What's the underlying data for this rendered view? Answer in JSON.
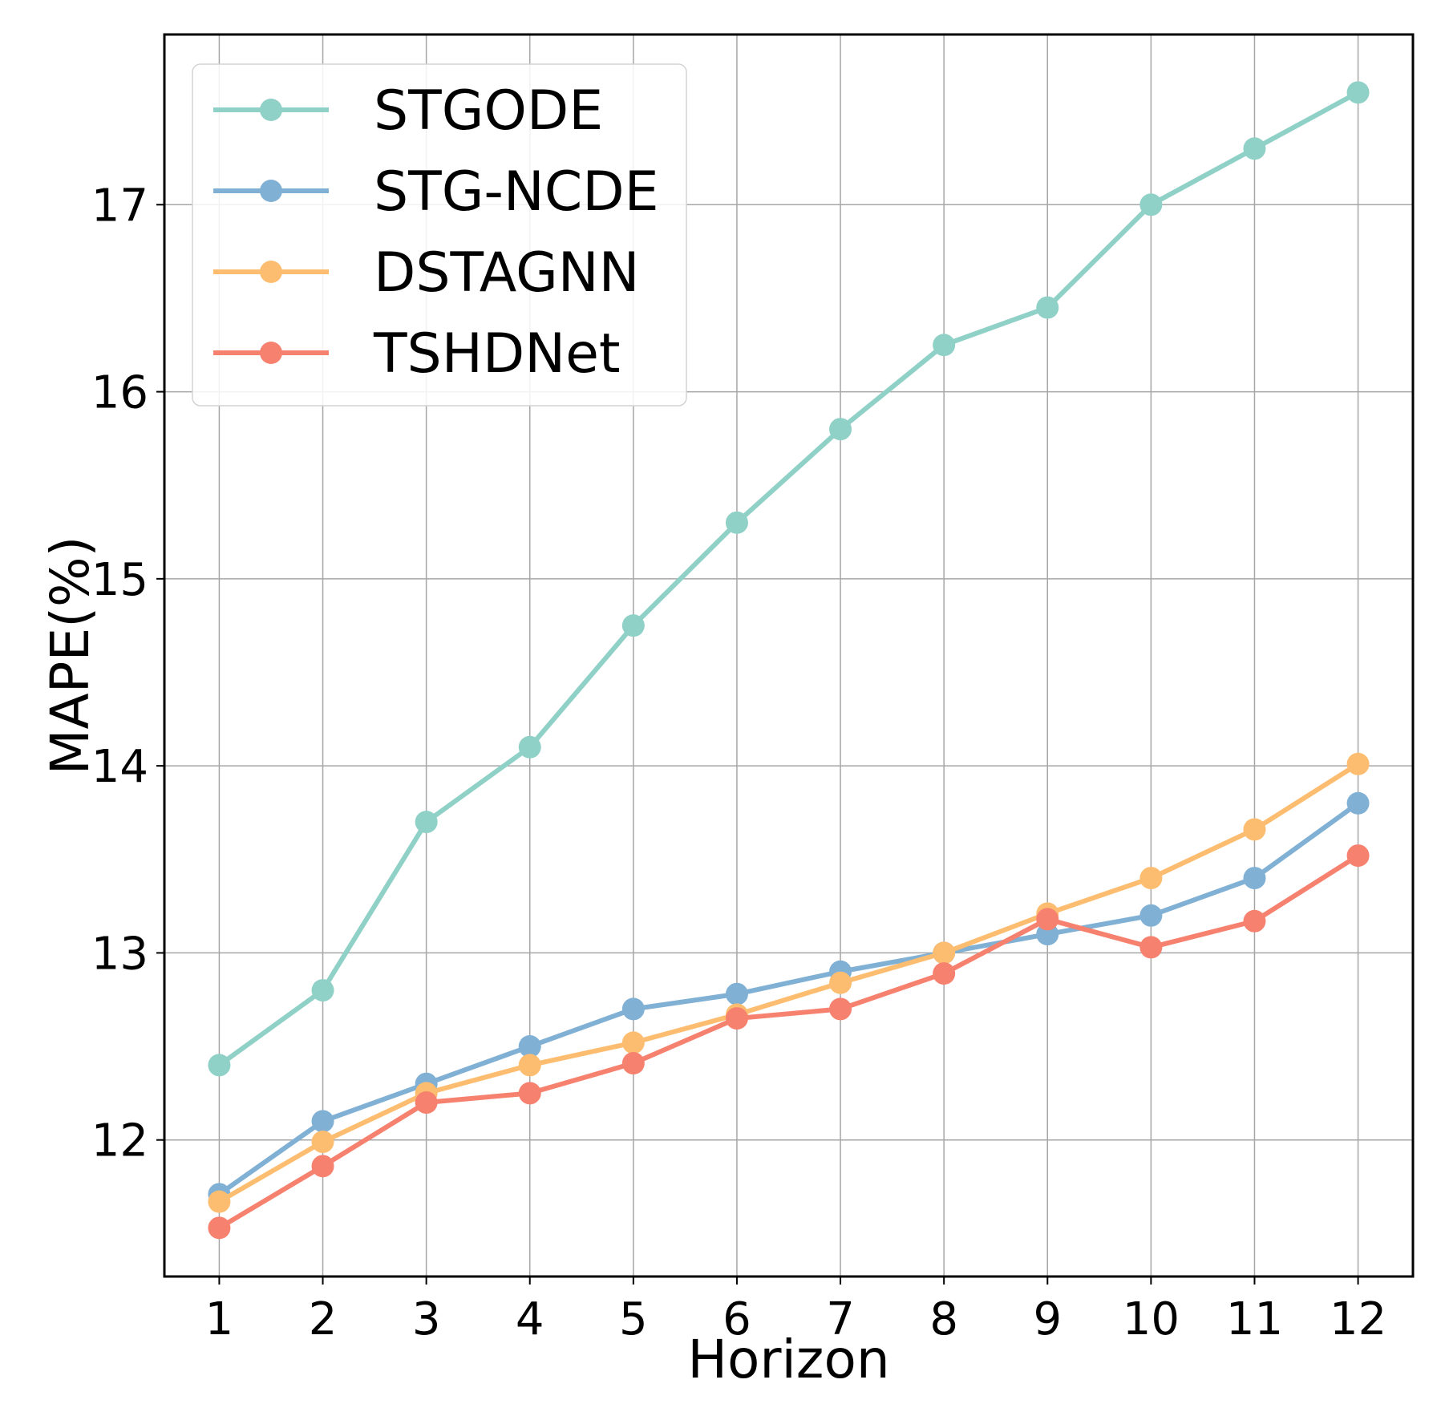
{
  "chart_data": {
    "type": "line",
    "xlabel": "Horizon",
    "ylabel": "MAPE(%)",
    "x": [
      1,
      2,
      3,
      4,
      5,
      6,
      7,
      8,
      9,
      10,
      11,
      12
    ],
    "xlim": [
      0.47,
      12.53
    ],
    "ylim": [
      11.27,
      17.91
    ],
    "yticks": [
      12,
      13,
      14,
      15,
      16,
      17
    ],
    "grid": true,
    "legend_position": "top-left",
    "series": [
      {
        "name": "STGODE",
        "color": "#8fd0c7",
        "values": [
          12.4,
          12.8,
          13.7,
          14.1,
          14.75,
          15.3,
          15.8,
          16.25,
          16.45,
          17.0,
          17.3,
          17.6
        ]
      },
      {
        "name": "STG-NCDE",
        "color": "#80b0d4",
        "values": [
          11.71,
          12.1,
          12.3,
          12.5,
          12.7,
          12.78,
          12.9,
          13.0,
          13.1,
          13.2,
          13.4,
          13.8
        ]
      },
      {
        "name": "DSTAGNN",
        "color": "#fdbd70",
        "values": [
          11.67,
          11.99,
          12.25,
          12.4,
          12.52,
          12.67,
          12.84,
          13.0,
          13.21,
          13.4,
          13.66,
          14.01
        ]
      },
      {
        "name": "TSHDNet",
        "color": "#f6816f",
        "values": [
          11.53,
          11.86,
          12.2,
          12.25,
          12.41,
          12.65,
          12.7,
          12.89,
          13.18,
          13.03,
          13.17,
          13.52
        ]
      }
    ]
  }
}
